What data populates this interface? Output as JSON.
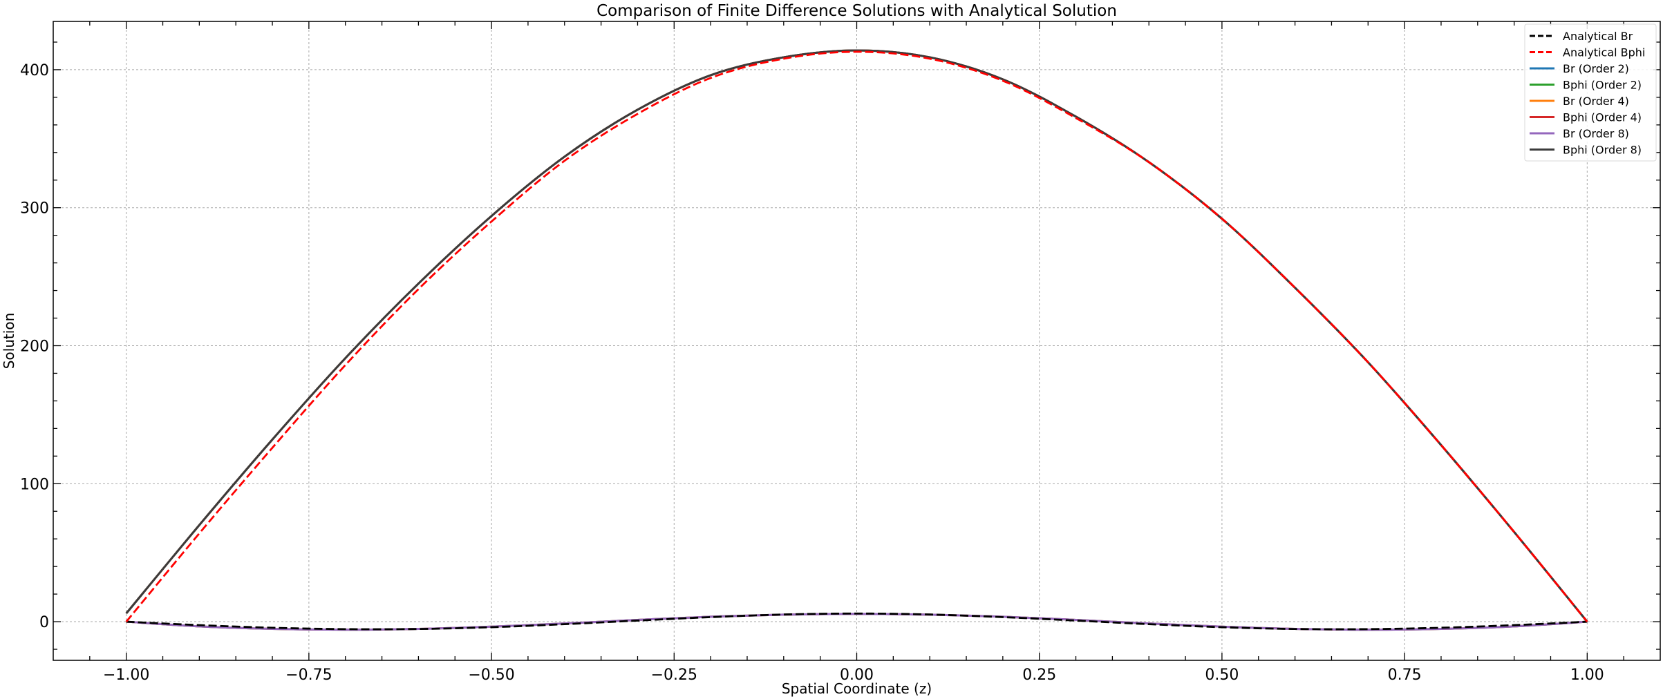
{
  "chart_data": {
    "type": "line",
    "title": "Comparison of Finite Difference Solutions with Analytical Solution",
    "xlabel": "Spatial Coordinate (z)",
    "ylabel": "Solution",
    "xlim": [
      -1.1,
      1.1
    ],
    "ylim": [
      -28,
      435
    ],
    "xticks": [
      -1.0,
      -0.75,
      -0.5,
      -0.25,
      0.0,
      0.25,
      0.5,
      0.75,
      1.0
    ],
    "xtick_labels": [
      "−1.00",
      "−0.75",
      "−0.50",
      "−0.25",
      "0.00",
      "0.25",
      "0.50",
      "0.75",
      "1.00"
    ],
    "yticks": [
      0,
      100,
      200,
      300,
      400
    ],
    "ytick_labels": [
      "0",
      "100",
      "200",
      "300",
      "400"
    ],
    "grid": true,
    "legend_position": "top-right",
    "x": [
      -1.0,
      -0.9,
      -0.8,
      -0.7,
      -0.6,
      -0.5,
      -0.4,
      -0.3,
      -0.2,
      -0.1,
      0.0,
      0.1,
      0.2,
      0.3,
      0.4,
      0.5,
      0.6,
      0.7,
      0.8,
      0.9,
      1.0
    ],
    "series": [
      {
        "name": "Analytical Br",
        "color": "#000000",
        "dash": true,
        "values": [
          0,
          -2.5,
          -4.4,
          -5.4,
          -5.3,
          -4.0,
          -1.8,
          0.8,
          3.3,
          5.2,
          5.9,
          5.2,
          3.3,
          0.8,
          -1.8,
          -4.0,
          -5.3,
          -5.4,
          -4.4,
          -2.5,
          0
        ]
      },
      {
        "name": "Analytical Bphi",
        "color": "#ff0000",
        "dash": true,
        "values": [
          0,
          64,
          126,
          186,
          241,
          290,
          334,
          368,
          394,
          408,
          413,
          408,
          392,
          365,
          333,
          292,
          242,
          188,
          128,
          65,
          0
        ]
      },
      {
        "name": "Br (Order 2)",
        "color": "#1f77b4",
        "dash": false,
        "values": [
          0,
          -3.4,
          -5.2,
          -5.8,
          -5.2,
          -3.6,
          -1.3,
          1.3,
          3.6,
          5.1,
          5.6,
          5.1,
          3.6,
          1.3,
          -1.3,
          -3.6,
          -5.2,
          -5.8,
          -5.2,
          -3.4,
          0
        ]
      },
      {
        "name": "Bphi (Order 2)",
        "color": "#2ca02c",
        "dash": false,
        "values": [
          6,
          70,
          132,
          191,
          245,
          294,
          337,
          371,
          396,
          409,
          414,
          409,
          393,
          366,
          333,
          292,
          242,
          188,
          128,
          65,
          0
        ]
      },
      {
        "name": "Br (Order 4)",
        "color": "#ff7f0e",
        "dash": false,
        "values": [
          0,
          -3.4,
          -5.2,
          -5.8,
          -5.2,
          -3.6,
          -1.3,
          1.3,
          3.6,
          5.1,
          5.6,
          5.1,
          3.6,
          1.3,
          -1.3,
          -3.6,
          -5.2,
          -5.8,
          -5.2,
          -3.4,
          0
        ]
      },
      {
        "name": "Bphi (Order 4)",
        "color": "#d62728",
        "dash": false,
        "values": [
          6,
          70,
          132,
          191,
          245,
          294,
          337,
          371,
          396,
          409,
          414,
          409,
          393,
          366,
          333,
          292,
          242,
          188,
          128,
          65,
          0
        ]
      },
      {
        "name": "Br (Order 8)",
        "color": "#9467bd",
        "dash": false,
        "values": [
          0,
          -3.4,
          -5.2,
          -5.8,
          -5.2,
          -3.6,
          -1.3,
          1.3,
          3.6,
          5.1,
          5.6,
          5.1,
          3.6,
          1.3,
          -1.3,
          -3.6,
          -5.2,
          -5.8,
          -5.2,
          -3.4,
          0
        ]
      },
      {
        "name": "Bphi (Order 8)",
        "color": "#3b3b3b",
        "dash": false,
        "values": [
          6,
          70,
          132,
          191,
          245,
          294,
          337,
          371,
          396,
          409,
          414,
          409,
          393,
          366,
          333,
          292,
          242,
          188,
          128,
          65,
          0
        ]
      }
    ]
  }
}
